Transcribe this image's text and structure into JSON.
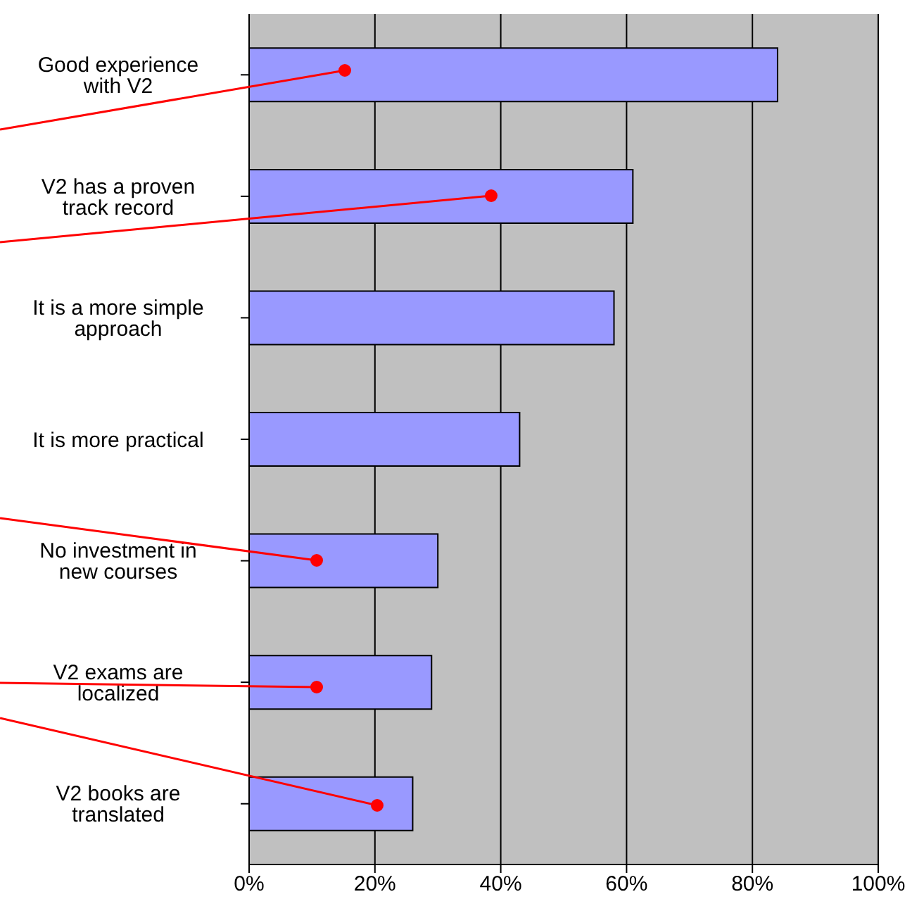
{
  "chart_data": {
    "type": "bar",
    "orientation": "horizontal",
    "categories": [
      "Good experience with V2",
      "V2 has a proven track record",
      "It is a more simple approach",
      "It is more practical",
      "No investment in new courses",
      "V2 exams are localized",
      "V2 books are translated"
    ],
    "values": [
      84,
      61,
      58,
      43,
      30,
      29,
      26
    ],
    "color": "#9999ff",
    "xlim": [
      0,
      100
    ],
    "xticks": [
      {
        "value": 0,
        "label": "0%"
      },
      {
        "value": 20,
        "label": "20%"
      },
      {
        "value": 40,
        "label": "40%"
      },
      {
        "value": 60,
        "label": "60%"
      },
      {
        "value": 80,
        "label": "80%"
      },
      {
        "value": 100,
        "label": "100%"
      }
    ],
    "grid": "x",
    "legend": false
  }
}
